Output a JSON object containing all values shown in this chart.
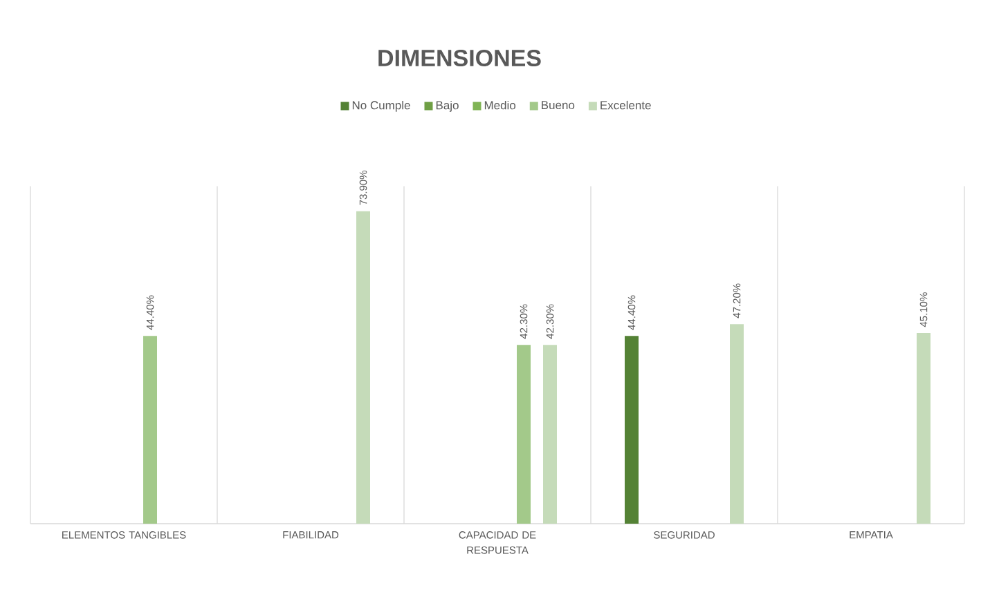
{
  "chart_data": {
    "type": "bar",
    "title": "DIMENSIONES",
    "categories": [
      "ELEMENTOS TANGIBLES",
      "FIABILIDAD",
      "CAPACIDAD DE RESPUESTA",
      "SEGURIDAD",
      "EMPATIA"
    ],
    "series": [
      {
        "name": "No Cumple",
        "color": "#548235",
        "values": [
          null,
          null,
          null,
          44.4,
          null
        ],
        "value_labels": [
          null,
          null,
          null,
          "44.40%",
          null
        ]
      },
      {
        "name": "Bajo",
        "color": "#6f9f45",
        "values": [
          null,
          null,
          null,
          null,
          null
        ]
      },
      {
        "name": "Medio",
        "color": "#80b455",
        "values": [
          null,
          null,
          null,
          null,
          null
        ]
      },
      {
        "name": "Bueno",
        "color": "#a3c98a",
        "values": [
          44.4,
          null,
          42.3,
          null,
          null
        ],
        "value_labels": [
          "44.40%",
          null,
          "42.30%",
          null,
          null
        ]
      },
      {
        "name": "Excelente",
        "color": "#c5dbb9",
        "values": [
          null,
          73.9,
          42.3,
          47.2,
          45.1
        ],
        "value_labels": [
          null,
          "73.90%",
          "42.30%",
          "47.20%",
          "45.10%"
        ]
      }
    ],
    "grid": "x",
    "legend": "top"
  }
}
